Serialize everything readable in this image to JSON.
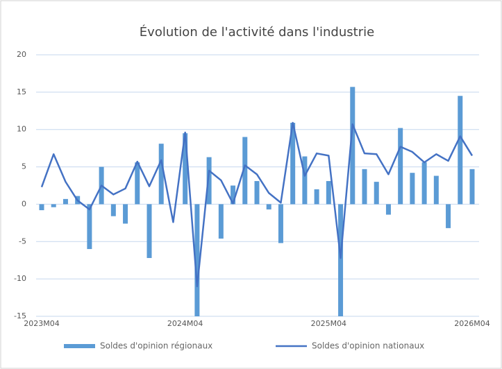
{
  "chart_data": {
    "type": "bar+line",
    "title": "Évolution de l'activité dans l'industrie",
    "categories": [
      "2023M04",
      null,
      null,
      null,
      null,
      null,
      null,
      null,
      null,
      null,
      null,
      null,
      "2024M04",
      null,
      null,
      null,
      null,
      null,
      null,
      null,
      null,
      null,
      null,
      null,
      "2025M04",
      null,
      null,
      null,
      null,
      null,
      null,
      null,
      null,
      null,
      null,
      null,
      "2026M04"
    ],
    "series": [
      {
        "name": "Soldes d'opinion régionaux",
        "type": "bar",
        "color": "#5b9bd5",
        "values": [
          -0.8,
          -0.4,
          0.7,
          1.1,
          -6.0,
          5.0,
          -1.6,
          -2.6,
          5.6,
          -7.2,
          8.1,
          0.0,
          9.5,
          -15,
          6.3,
          -4.6,
          2.5,
          9.0,
          3.1,
          -0.7,
          -5.2,
          10.9,
          6.4,
          2.0,
          3.1,
          -15,
          15.7,
          4.7,
          3.0,
          -1.4,
          10.2,
          4.2,
          5.6,
          3.8,
          -3.2,
          14.5,
          4.7
        ]
      },
      {
        "name": "Soldes d'opinion nationaux",
        "type": "line",
        "color": "#4472c4",
        "values": [
          2.3,
          6.7,
          3.0,
          0.5,
          -0.7,
          2.5,
          1.3,
          2.1,
          5.7,
          2.4,
          5.9,
          -2.4,
          9.6,
          -11,
          4.5,
          3.2,
          0.1,
          5.2,
          4.0,
          1.5,
          0.2,
          10.9,
          3.8,
          6.8,
          6.5,
          -7.2,
          10.7,
          6.8,
          6.7,
          4.0,
          7.7,
          7.0,
          5.6,
          6.7,
          5.8,
          9.1,
          6.5
        ]
      }
    ],
    "ylim": [
      -15,
      20
    ],
    "yticks": [
      -15,
      -10,
      -5,
      0,
      5,
      10,
      15,
      20
    ],
    "grid": true,
    "legend": "bottom"
  }
}
